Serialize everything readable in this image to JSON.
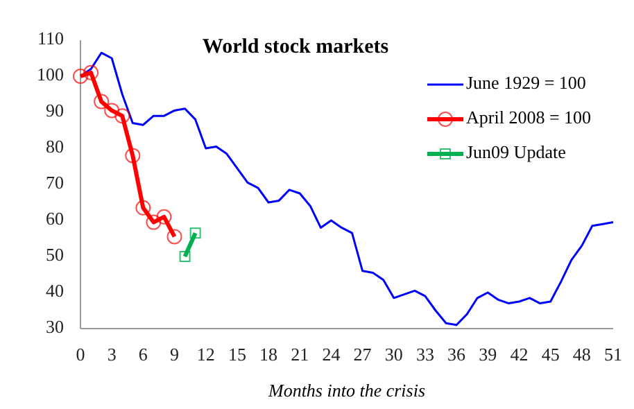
{
  "chart_data": {
    "type": "line",
    "title": "World stock markets",
    "xlabel": "Months into the crisis",
    "xlim": [
      0,
      51
    ],
    "xticks": [
      0,
      3,
      6,
      9,
      12,
      15,
      18,
      21,
      24,
      27,
      30,
      33,
      36,
      39,
      42,
      45,
      48,
      51
    ],
    "ylim": [
      30,
      110
    ],
    "yticks": [
      30,
      40,
      50,
      60,
      70,
      80,
      90,
      100,
      110
    ],
    "grid": false,
    "legend": "top right",
    "series": [
      {
        "name": "June 1929 = 100",
        "color": "#0000ff",
        "marker": "none",
        "x": [
          0,
          1,
          2,
          3,
          4,
          5,
          6,
          7,
          8,
          9,
          10,
          11,
          12,
          13,
          14,
          15,
          16,
          17,
          18,
          19,
          20,
          21,
          22,
          23,
          24,
          25,
          26,
          27,
          28,
          29,
          30,
          31,
          32,
          33,
          34,
          35,
          36,
          37,
          38,
          39,
          40,
          41,
          42,
          43,
          44,
          45,
          46,
          47,
          48,
          49,
          50,
          51
        ],
        "values": [
          100,
          102,
          106.5,
          105,
          95,
          87,
          86.5,
          89,
          89,
          90.5,
          91,
          88,
          80,
          80.5,
          78.5,
          74.5,
          70.5,
          69,
          65,
          65.5,
          68.5,
          67.5,
          64,
          58,
          60,
          58,
          56.5,
          46,
          45.5,
          43.5,
          38.5,
          39.5,
          40.5,
          39,
          35,
          31.5,
          31,
          34,
          38.5,
          40,
          38,
          37,
          37.5,
          38.5,
          37,
          37.5,
          43,
          49,
          53,
          58.5,
          59,
          59.5
        ]
      },
      {
        "name": "April 2008 = 100",
        "color": "#ff0000",
        "marker": "circle",
        "x": [
          0,
          1,
          2,
          3,
          4,
          5,
          6,
          7,
          8,
          9
        ],
        "values": [
          100,
          101,
          93,
          90.5,
          89,
          78,
          63.5,
          59.5,
          61,
          55.5
        ]
      },
      {
        "name": "Jun09 Update",
        "color": "#00b050",
        "marker": "square",
        "x": [
          10,
          11
        ],
        "values": [
          50,
          56.5
        ]
      }
    ]
  }
}
